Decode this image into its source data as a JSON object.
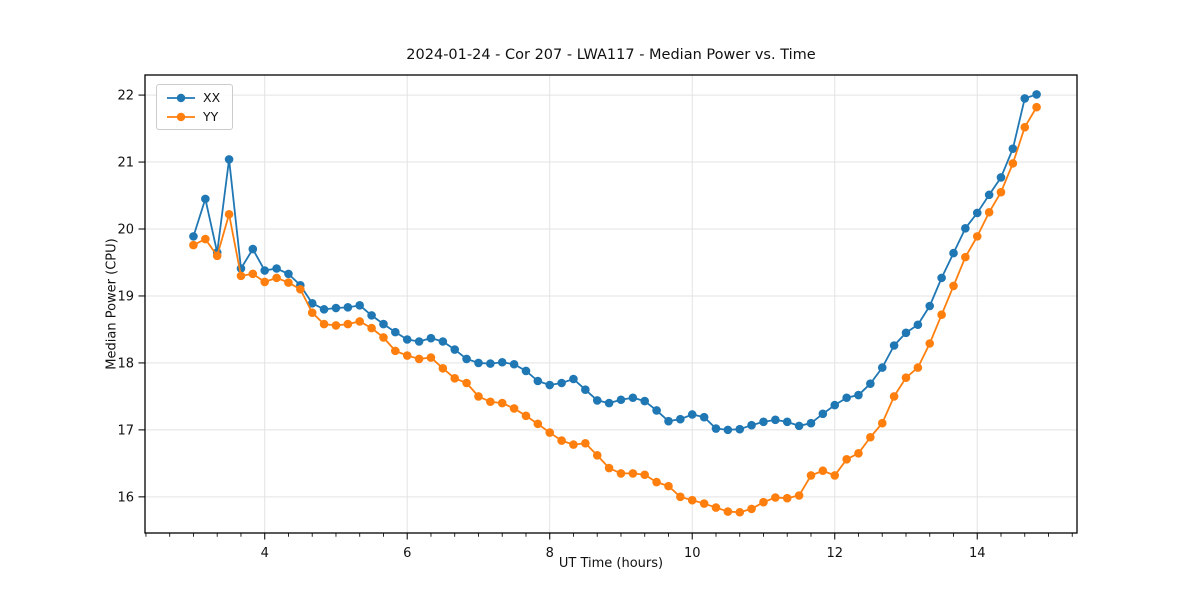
{
  "figure": {
    "title": "2024-01-24 - Cor 207 - LWA117 - Median Power vs. Time",
    "xlabel": "UT Time (hours)",
    "ylabel": "Median Power (CPU)"
  },
  "chart_data": {
    "type": "line",
    "title": "2024-01-24 - Cor 207 - LWA117 - Median Power vs. Time",
    "xlabel": "UT Time (hours)",
    "ylabel": "Median Power (CPU)",
    "xlim": [
      2.32,
      15.4
    ],
    "ylim": [
      15.46,
      22.3
    ],
    "xticks": [
      4,
      6,
      8,
      10,
      12,
      14
    ],
    "yticks": [
      16,
      17,
      18,
      19,
      20,
      21,
      22
    ],
    "x_minor_step": 0.3333,
    "grid": "major",
    "legend_position": "upper left",
    "style": {
      "grid_color": "#e3e3e3",
      "spine_color": "#000000",
      "tick_color": "#111111",
      "background": "#ffffff",
      "marker": "circle",
      "marker_radius": 4.3,
      "line_width": 1.8
    },
    "x": [
      3.0,
      3.167,
      3.333,
      3.5,
      3.667,
      3.833,
      4.0,
      4.167,
      4.333,
      4.5,
      4.667,
      4.833,
      5.0,
      5.167,
      5.333,
      5.5,
      5.667,
      5.833,
      6.0,
      6.167,
      6.333,
      6.5,
      6.667,
      6.833,
      7.0,
      7.167,
      7.333,
      7.5,
      7.667,
      7.833,
      8.0,
      8.167,
      8.333,
      8.5,
      8.667,
      8.833,
      9.0,
      9.167,
      9.333,
      9.5,
      9.667,
      9.833,
      10.0,
      10.167,
      10.333,
      10.5,
      10.667,
      10.833,
      11.0,
      11.167,
      11.333,
      11.5,
      11.667,
      11.833,
      12.0,
      12.167,
      12.333,
      12.5,
      12.667,
      12.833,
      13.0,
      13.167,
      13.333,
      13.5,
      13.667,
      13.833,
      14.0,
      14.167,
      14.333,
      14.5,
      14.667,
      14.833
    ],
    "series": [
      {
        "name": "XX",
        "color": "#1f77b4",
        "values": [
          19.89,
          20.45,
          19.65,
          21.04,
          19.41,
          19.7,
          19.38,
          19.41,
          19.33,
          19.16,
          18.89,
          18.8,
          18.82,
          18.83,
          18.86,
          18.71,
          18.58,
          18.46,
          18.35,
          18.32,
          18.37,
          18.32,
          18.2,
          18.06,
          18.0,
          17.99,
          18.01,
          17.98,
          17.88,
          17.73,
          17.67,
          17.7,
          17.76,
          17.6,
          17.44,
          17.4,
          17.45,
          17.48,
          17.43,
          17.29,
          17.13,
          17.16,
          17.23,
          17.19,
          17.02,
          17.0,
          17.01,
          17.07,
          17.12,
          17.15,
          17.12,
          17.06,
          17.1,
          17.24,
          17.37,
          17.48,
          17.52,
          17.69,
          17.93,
          18.26,
          18.45,
          18.57,
          18.85,
          19.27,
          19.64,
          20.01,
          20.24,
          20.51,
          20.77,
          21.2,
          21.95,
          22.01
        ]
      },
      {
        "name": "YY",
        "color": "#ff7f0e",
        "values": [
          19.76,
          19.85,
          19.6,
          20.22,
          19.3,
          19.33,
          19.21,
          19.27,
          19.2,
          19.1,
          18.75,
          18.58,
          18.56,
          18.58,
          18.62,
          18.52,
          18.38,
          18.18,
          18.11,
          18.06,
          18.08,
          17.92,
          17.77,
          17.7,
          17.5,
          17.42,
          17.4,
          17.32,
          17.21,
          17.09,
          16.96,
          16.84,
          16.78,
          16.8,
          16.62,
          16.43,
          16.35,
          16.35,
          16.33,
          16.22,
          16.16,
          16.0,
          15.95,
          15.9,
          15.84,
          15.78,
          15.77,
          15.82,
          15.92,
          15.99,
          15.98,
          16.02,
          16.32,
          16.39,
          16.32,
          16.56,
          16.65,
          16.89,
          17.1,
          17.5,
          17.78,
          17.93,
          18.29,
          18.72,
          19.15,
          19.58,
          19.89,
          20.25,
          20.55,
          20.98,
          21.52,
          21.82
        ]
      }
    ]
  }
}
